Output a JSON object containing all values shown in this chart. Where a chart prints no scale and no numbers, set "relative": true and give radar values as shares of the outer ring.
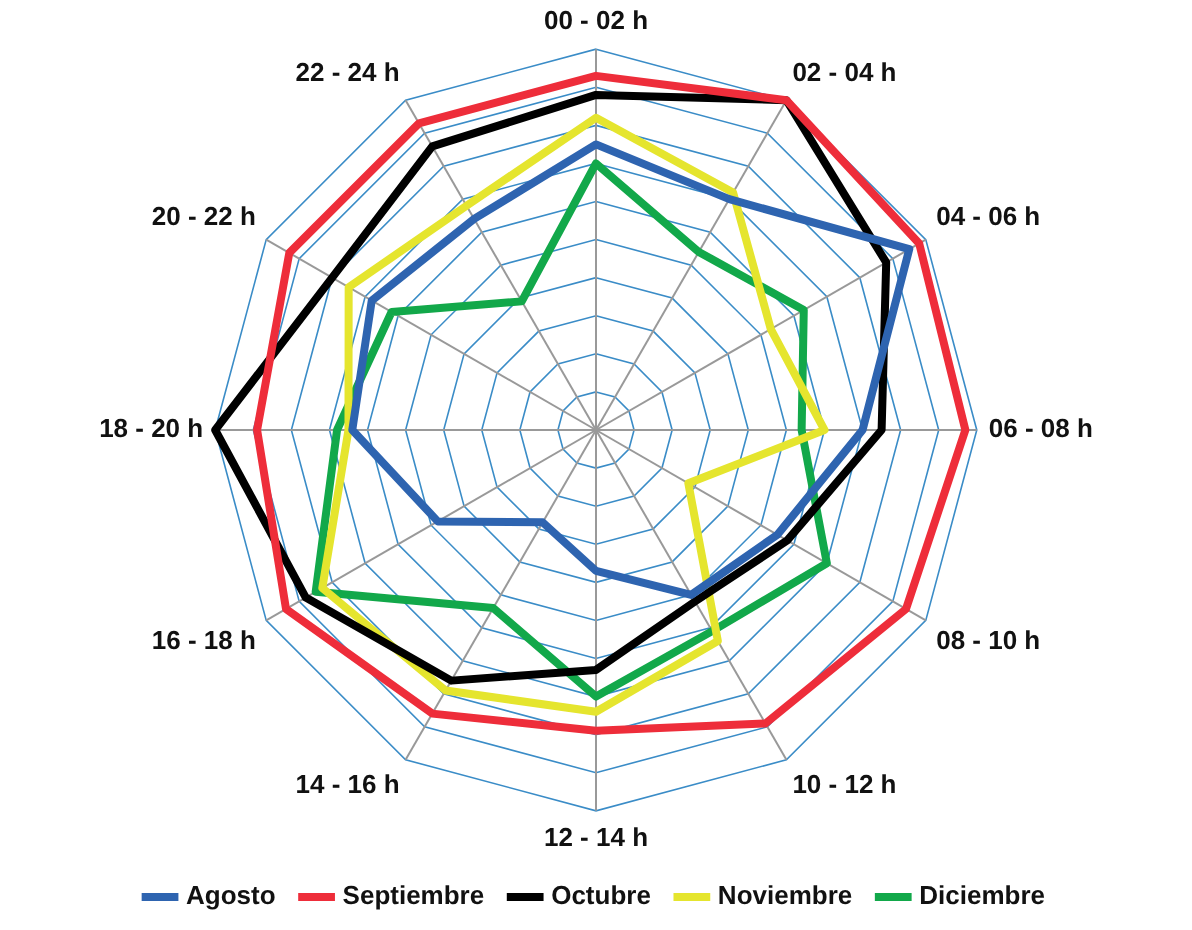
{
  "chart_data": {
    "type": "radar",
    "relative": true,
    "grid": true,
    "legend": "bottom",
    "marker": "none",
    "line_style": "solid",
    "categories": [
      "00 - 02 h",
      "02 - 04 h",
      "04 - 06 h",
      "06 - 08 h",
      "08 - 10 h",
      "10 - 12 h",
      "12 - 14 h",
      "14 - 16 h",
      "16 - 18 h",
      "18 - 20 h",
      "20 - 22 h",
      "22 - 24 h"
    ],
    "series": [
      {
        "name": "Agosto",
        "color": "#2e64b0",
        "values": [
          0.75,
          0.7,
          0.95,
          0.7,
          0.55,
          0.5,
          0.37,
          0.28,
          0.48,
          0.64,
          0.68,
          0.64
        ]
      },
      {
        "name": "Septiembre",
        "color": "#ee2d3a",
        "values": [
          0.93,
          1.0,
          0.98,
          0.97,
          0.94,
          0.89,
          0.79,
          0.86,
          0.94,
          0.89,
          0.93,
          0.93
        ]
      },
      {
        "name": "Octubre",
        "color": "#000000",
        "values": [
          0.88,
          1.0,
          0.88,
          0.75,
          0.58,
          0.52,
          0.63,
          0.76,
          0.88,
          1.0,
          0.8,
          0.86
        ]
      },
      {
        "name": "Noviembre",
        "color": "#e5e52e",
        "values": [
          0.82,
          0.72,
          0.53,
          0.6,
          0.28,
          0.64,
          0.74,
          0.79,
          0.83,
          0.65,
          0.75,
          0.68
        ]
      },
      {
        "name": "Diciembre",
        "color": "#12a84a",
        "values": [
          0.7,
          0.54,
          0.63,
          0.54,
          0.7,
          0.61,
          0.7,
          0.54,
          0.85,
          0.68,
          0.62,
          0.39
        ]
      }
    ]
  }
}
